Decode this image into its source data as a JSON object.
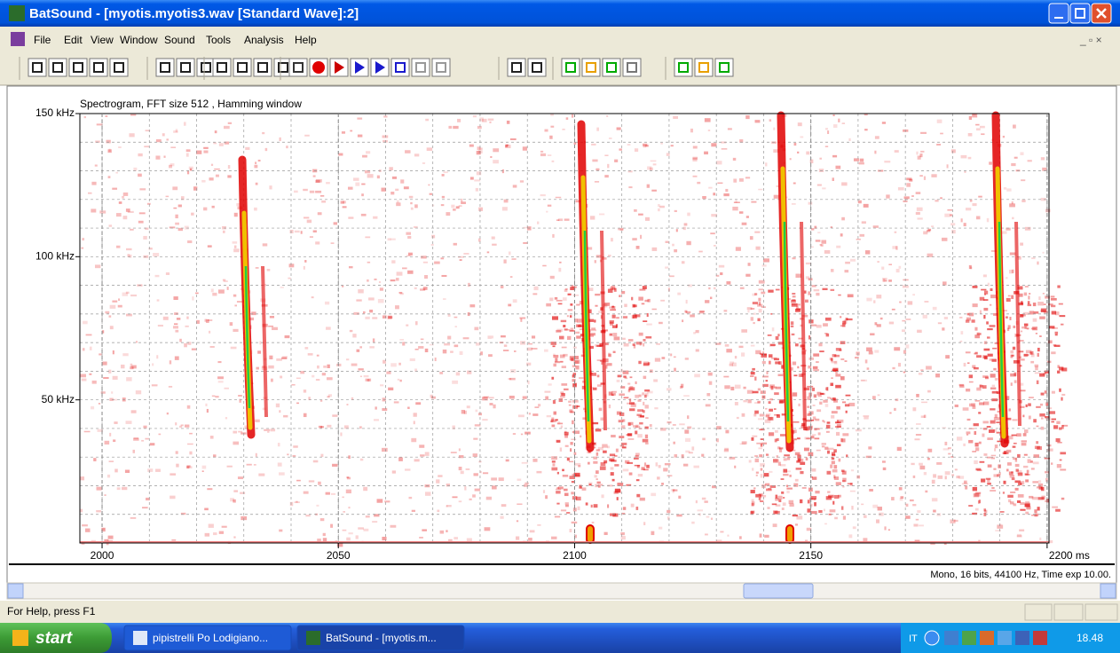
{
  "window": {
    "title": "BatSound - [myotis.myotis3.wav [Standard Wave]:2]"
  },
  "menu": [
    "File",
    "Edit",
    "View",
    "Window",
    "Sound",
    "Tools",
    "Analysis",
    "Help"
  ],
  "spectrogram": {
    "title": "Spectrogram, FFT size 512 , Hamming window",
    "xlim": [
      1995.3,
      2200.4
    ],
    "ylim": [
      0,
      150
    ],
    "xticks": [
      2000,
      2050,
      2100,
      2150,
      {
        "value": 2200,
        "label": "2200 ms"
      }
    ],
    "yticks": [
      {
        "value": 50,
        "label": "50 kHz"
      },
      {
        "value": 100,
        "label": "100 kHz"
      },
      {
        "value": 150,
        "label": "150 kHz"
      }
    ],
    "grid": true,
    "info": "Mono, 16 bits, 44100 Hz, Time exp 10.00."
  },
  "status_bar": {
    "text": "For Help, press F1"
  },
  "taskbar": {
    "start": "start",
    "items": [
      "pipistrelli Po Lodigiano...",
      "BatSound - [myotis.m..."
    ],
    "language": "IT",
    "clock": "18.48"
  }
}
